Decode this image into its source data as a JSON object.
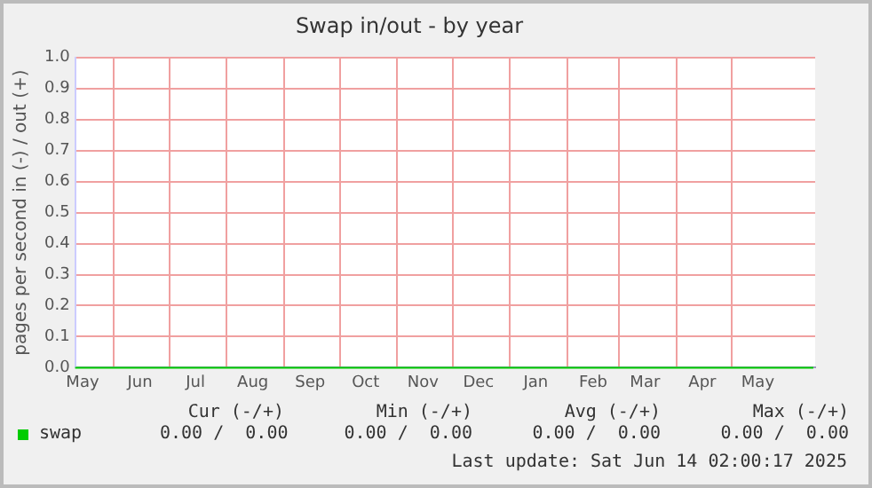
{
  "chart_data": {
    "type": "line",
    "title": "Swap in/out - by year",
    "ylabel": "pages per second in (-) / out (+)",
    "x": [
      "2024-05-11",
      "2025-06-14"
    ],
    "series": [
      {
        "name": "swap",
        "color": "#00cc00",
        "values": [
          0,
          0
        ]
      }
    ],
    "xlim": [
      "2024-05-11",
      "2025-06-15"
    ],
    "xticks": [
      {
        "value": "2024-05-15",
        "label": "May"
      },
      {
        "value": "2024-06-01",
        "label": null
      },
      {
        "value": "2024-06-15",
        "label": "Jun"
      },
      {
        "value": "2024-07-01",
        "label": null
      },
      {
        "value": "2024-07-15",
        "label": "Jul"
      },
      {
        "value": "2024-08-01",
        "label": null
      },
      {
        "value": "2024-08-15",
        "label": "Aug"
      },
      {
        "value": "2024-09-01",
        "label": null
      },
      {
        "value": "2024-09-15",
        "label": "Sep"
      },
      {
        "value": "2024-10-01",
        "label": null
      },
      {
        "value": "2024-10-15",
        "label": "Oct"
      },
      {
        "value": "2024-11-01",
        "label": null
      },
      {
        "value": "2024-11-15",
        "label": "Nov"
      },
      {
        "value": "2024-12-01",
        "label": null
      },
      {
        "value": "2024-12-15",
        "label": "Dec"
      },
      {
        "value": "2025-01-01",
        "label": null
      },
      {
        "value": "2025-01-15",
        "label": "Jan"
      },
      {
        "value": "2025-02-01",
        "label": null
      },
      {
        "value": "2025-02-15",
        "label": "Feb"
      },
      {
        "value": "2025-03-01",
        "label": null
      },
      {
        "value": "2025-03-15",
        "label": "Mar"
      },
      {
        "value": "2025-04-01",
        "label": null
      },
      {
        "value": "2025-04-15",
        "label": "Apr"
      },
      {
        "value": "2025-05-01",
        "label": null
      },
      {
        "value": "2025-05-15",
        "label": "May"
      }
    ],
    "ylim": [
      0,
      1
    ],
    "yticks": [
      {
        "value": 0,
        "label": "0.0"
      },
      {
        "value": 0.1,
        "label": "0.1"
      },
      {
        "value": 0.2,
        "label": "0.2"
      },
      {
        "value": 0.3,
        "label": "0.3"
      },
      {
        "value": 0.4,
        "label": "0.4"
      },
      {
        "value": 0.5,
        "label": "0.5"
      },
      {
        "value": 0.6,
        "label": "0.6"
      },
      {
        "value": 0.7,
        "label": "0.7"
      },
      {
        "value": 0.8,
        "label": "0.8"
      },
      {
        "value": 0.9,
        "label": "0.9"
      },
      {
        "value": 1,
        "label": "1.0"
      }
    ],
    "grid": true,
    "legend": "bottom left",
    "marker": "none",
    "line_style": "solid",
    "annotations": [
      "Cur (-/+)",
      "Min (-/+)",
      "Avg (-/+)",
      "Max (-/+)",
      "0.00 /  0.00",
      "0.00 /  0.00",
      "0.00 /  0.00",
      "0.00 /  0.00",
      "Last update: Sat Jun 14 02:00:17 2025"
    ]
  }
}
